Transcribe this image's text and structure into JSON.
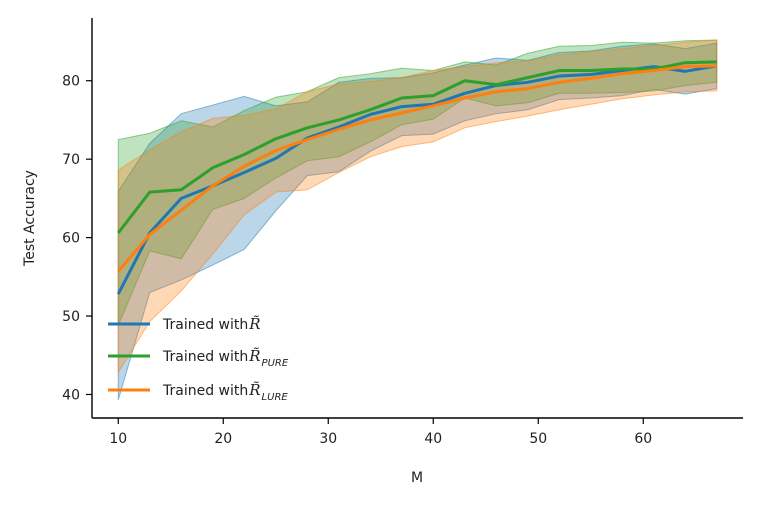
{
  "chart_data": {
    "type": "line",
    "title": "",
    "xlabel": "M",
    "ylabel": "Test Accuracy",
    "xlim": [
      7.5,
      69.5
    ],
    "ylim": [
      37,
      88
    ],
    "xticks": [
      10,
      20,
      30,
      40,
      50,
      60
    ],
    "yticks": [
      40,
      50,
      60,
      70,
      80
    ],
    "legend_position": "lower-left",
    "x": [
      10,
      13,
      16,
      19,
      22,
      25,
      28,
      31,
      34,
      37,
      40,
      43,
      46,
      49,
      52,
      55,
      58,
      61,
      64,
      67
    ],
    "series": [
      {
        "name": "Trained with R̃",
        "legend_prefix": "Trained with ",
        "legend_symbol": "R̃",
        "legend_subscript": "",
        "color": "#1f77b4",
        "mean": [
          52.8,
          60.6,
          65.0,
          66.6,
          68.3,
          70.1,
          72.7,
          74.1,
          75.7,
          76.7,
          77.0,
          78.4,
          79.4,
          79.8,
          80.6,
          80.8,
          81.3,
          81.8,
          81.2,
          81.9
        ],
        "lower": [
          39.3,
          53.0,
          54.6,
          56.5,
          58.5,
          63.4,
          67.9,
          68.4,
          71.0,
          73.0,
          73.2,
          74.9,
          75.8,
          76.3,
          77.6,
          77.8,
          78.1,
          78.9,
          78.3,
          79.0
        ],
        "upper": [
          65.9,
          72.0,
          75.8,
          76.9,
          78.0,
          76.8,
          77.3,
          79.8,
          80.3,
          80.4,
          81.0,
          82.0,
          82.9,
          82.6,
          83.6,
          83.8,
          84.4,
          84.7,
          84.1,
          84.8
        ]
      },
      {
        "name": "Trained with R̃_PURE",
        "legend_prefix": "Trained with ",
        "legend_symbol": "R̃",
        "legend_subscript": "PURE",
        "color": "#2ca02c",
        "mean": [
          60.6,
          65.8,
          66.1,
          68.9,
          70.6,
          72.6,
          74.0,
          75.0,
          76.3,
          77.8,
          78.1,
          80.0,
          79.5,
          80.4,
          81.3,
          81.3,
          81.5,
          81.5,
          82.3,
          82.4
        ],
        "lower": [
          48.8,
          58.3,
          57.3,
          63.6,
          65.0,
          67.6,
          69.8,
          70.3,
          72.2,
          74.4,
          75.1,
          77.8,
          76.8,
          77.2,
          78.4,
          78.4,
          78.5,
          78.7,
          79.4,
          79.8
        ],
        "upper": [
          72.5,
          73.3,
          74.9,
          74.1,
          76.2,
          77.9,
          78.6,
          80.4,
          80.9,
          81.6,
          81.3,
          82.4,
          82.0,
          83.5,
          84.4,
          84.5,
          84.9,
          84.8,
          85.1,
          85.2
        ]
      },
      {
        "name": "Trained with R̃_LURE",
        "legend_prefix": "Trained with ",
        "legend_symbol": "R̃",
        "legend_subscript": "LURE",
        "color": "#ff7f0e",
        "mean": [
          55.7,
          60.4,
          63.5,
          66.6,
          69.1,
          71.1,
          72.5,
          73.8,
          75.0,
          75.9,
          76.8,
          77.8,
          78.6,
          79.0,
          79.8,
          80.3,
          80.9,
          81.3,
          81.8,
          81.9
        ],
        "lower": [
          42.8,
          49.3,
          53.2,
          57.9,
          62.9,
          65.8,
          66.1,
          68.3,
          70.3,
          71.6,
          72.2,
          74.0,
          74.8,
          75.5,
          76.3,
          77.0,
          77.7,
          78.2,
          78.6,
          78.7
        ],
        "upper": [
          68.6,
          71.2,
          73.5,
          75.2,
          75.6,
          76.4,
          78.6,
          79.6,
          79.9,
          80.4,
          81.3,
          81.8,
          82.3,
          82.5,
          83.3,
          83.7,
          84.1,
          84.5,
          84.9,
          85.2
        ]
      }
    ]
  }
}
